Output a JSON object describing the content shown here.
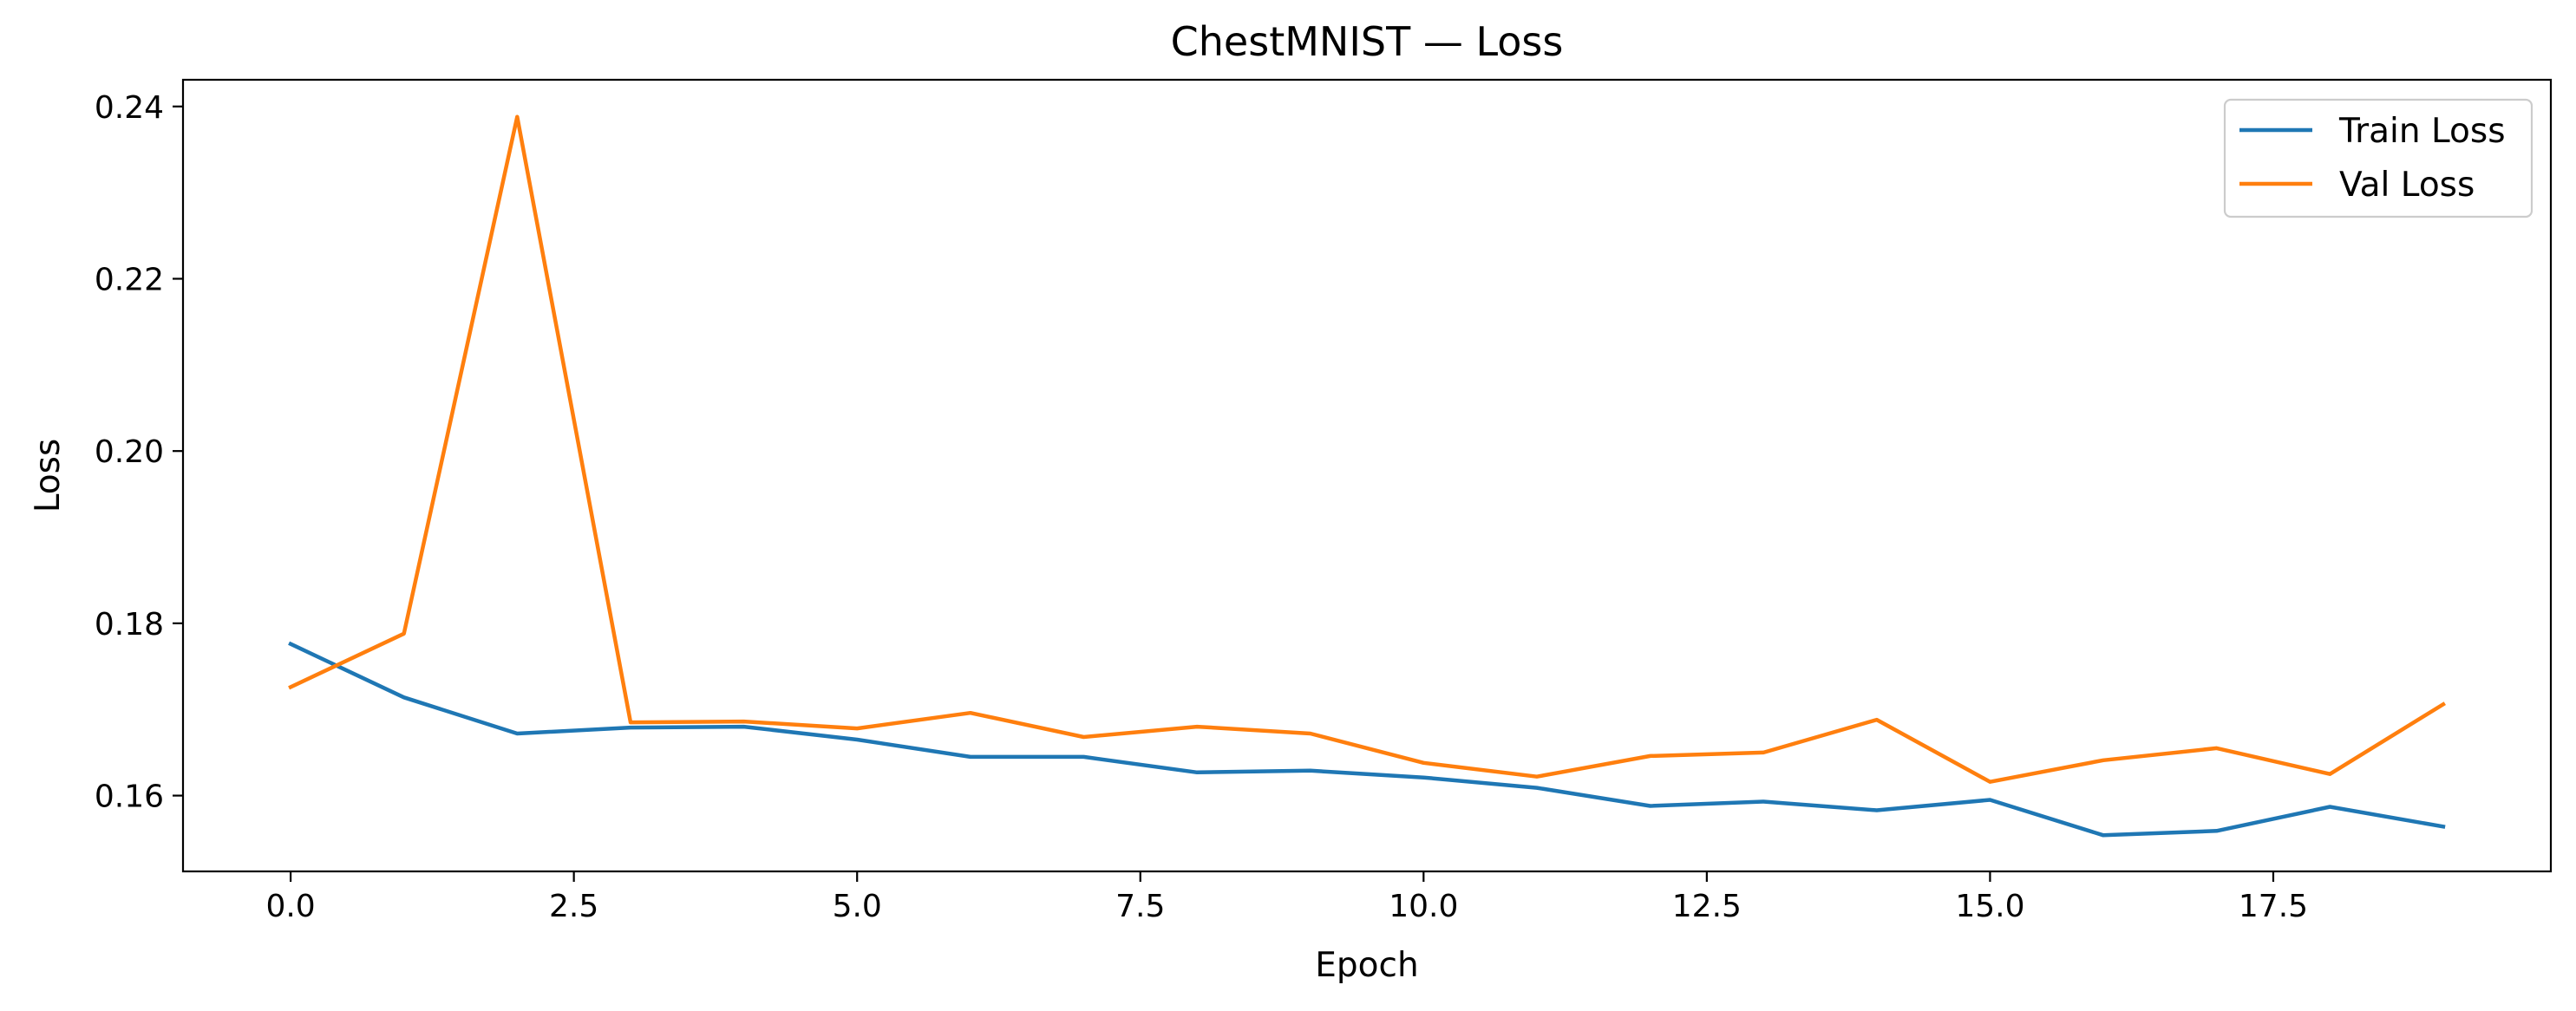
{
  "chart_data": {
    "type": "line",
    "title": "ChestMNIST — Loss",
    "xlabel": "Epoch",
    "ylabel": "Loss",
    "xlim": [
      -0.95,
      19.95
    ],
    "ylim": [
      0.1512,
      0.2431
    ],
    "xticks": [
      0,
      2.5,
      5,
      7.5,
      10,
      12.5,
      15,
      17.5
    ],
    "xtick_labels": [
      "0.0",
      "2.5",
      "5.0",
      "7.5",
      "10.0",
      "12.5",
      "15.0",
      "17.5"
    ],
    "yticks": [
      0.16,
      0.18,
      0.2,
      0.22,
      0.24
    ],
    "ytick_labels": [
      "0.16",
      "0.18",
      "0.20",
      "0.22",
      "0.24"
    ],
    "grid": false,
    "legend_position": "top-right",
    "x": [
      0,
      1,
      2,
      3,
      4,
      5,
      6,
      7,
      8,
      9,
      10,
      11,
      12,
      13,
      14,
      15,
      16,
      17,
      18,
      19
    ],
    "series": [
      {
        "name": "Train Loss",
        "color": "#1f77b4",
        "values": [
          0.1776,
          0.1714,
          0.1672,
          0.1679,
          0.168,
          0.1665,
          0.1645,
          0.1645,
          0.1627,
          0.1629,
          0.1621,
          0.1609,
          0.1588,
          0.1593,
          0.1583,
          0.1595,
          0.1554,
          0.1559,
          0.1587,
          0.1564
        ]
      },
      {
        "name": "Val Loss",
        "color": "#ff7f0e",
        "values": [
          0.1726,
          0.1788,
          0.2388,
          0.1685,
          0.1686,
          0.1678,
          0.1696,
          0.1668,
          0.168,
          0.1672,
          0.1638,
          0.1622,
          0.1646,
          0.165,
          0.1688,
          0.1616,
          0.1641,
          0.1655,
          0.1625,
          0.1706
        ]
      }
    ]
  }
}
